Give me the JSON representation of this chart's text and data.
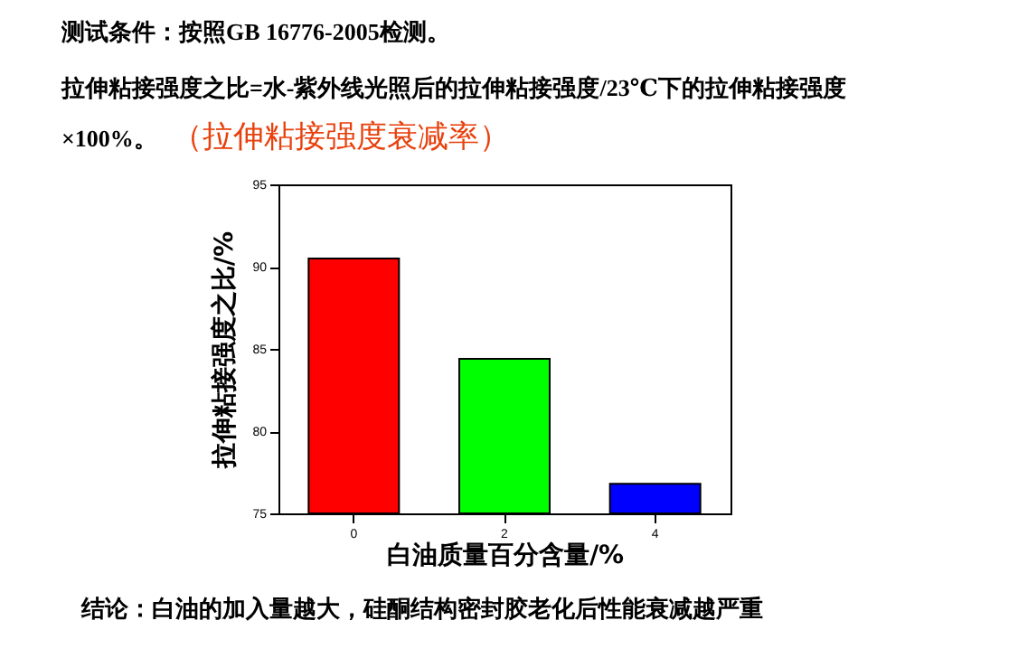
{
  "chart_data": {
    "type": "bar",
    "title": "测试条件：按照GB 16776-2005检测。",
    "subtitle": "拉伸粘接强度之比=水-紫外线光照后的拉伸粘接强度/23℃下的拉伸粘接强度×100%。",
    "annotations": [
      "（拉伸粘接强度衰减率）",
      "结论：白油的加入量越大，硅酮结构密封胶老化后性能衰减越严重"
    ],
    "xlabel": "白油质量百分含量/%",
    "ylabel": "拉伸粘接强度之比/%",
    "categories": [
      "0",
      "2",
      "4"
    ],
    "values": [
      90.5,
      84.4,
      76.8
    ],
    "colors": [
      "#ff0000",
      "#00ff00",
      "#0000ff"
    ],
    "ylim": [
      75,
      95
    ],
    "yticks": [
      75,
      80,
      85,
      90,
      95
    ],
    "grid": false,
    "legend": false
  }
}
